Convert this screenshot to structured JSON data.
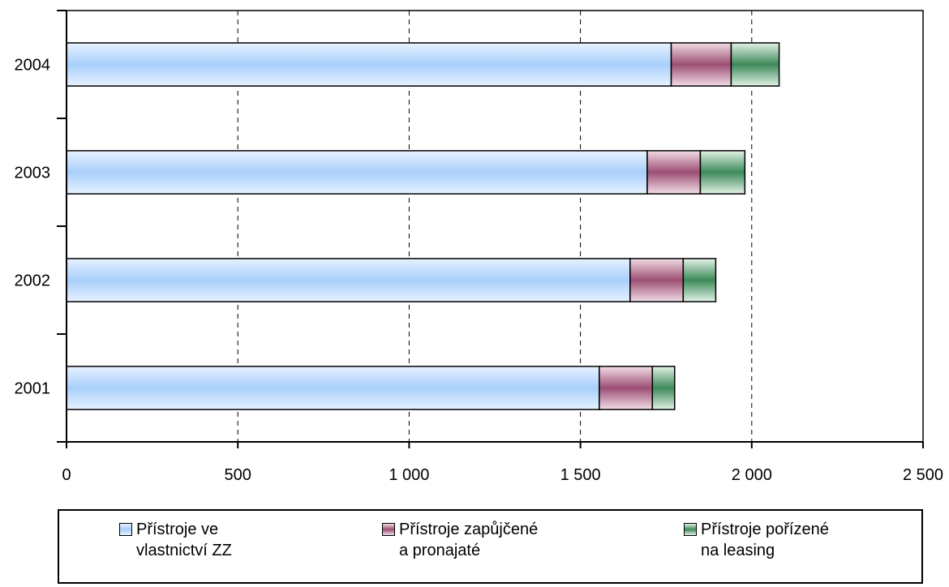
{
  "chart_data": {
    "type": "bar",
    "orientation": "horizontal",
    "stacked": true,
    "categories": [
      "2001",
      "2002",
      "2003",
      "2004"
    ],
    "series": [
      {
        "name": "Přístroje ve\nvlastnictví ZZ",
        "color": "#bfdcff",
        "values": [
          1555,
          1645,
          1695,
          1765
        ]
      },
      {
        "name": "Přístroje zapůjčené\na pronajaté",
        "color": "#b56a8c",
        "values": [
          155,
          155,
          155,
          175
        ]
      },
      {
        "name": "Přístroje pořízené\nna leasing",
        "color": "#4f9a6c",
        "values": [
          65,
          95,
          130,
          140
        ]
      }
    ],
    "xlim": [
      0,
      2500
    ],
    "xticks": [
      0,
      500,
      1000,
      1500,
      2000,
      2500
    ],
    "xtick_labels": [
      "0",
      "500",
      "1 000",
      "1 500",
      "2 000",
      "2 500"
    ],
    "grid": "vertical dashed",
    "legend_position": "bottom",
    "title": "",
    "xlabel": "",
    "ylabel": ""
  }
}
